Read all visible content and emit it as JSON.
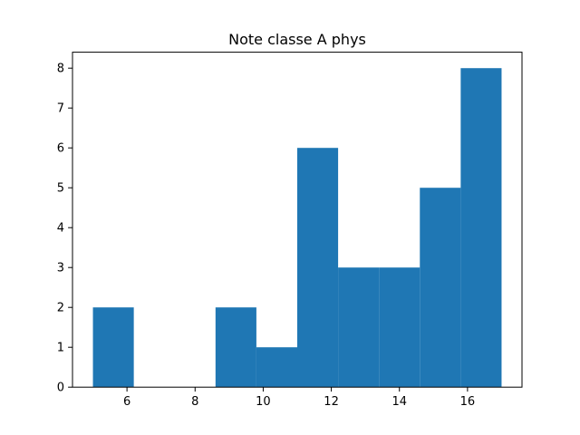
{
  "chart_data": {
    "type": "bar",
    "subtype": "histogram",
    "title": "Note classe A phys",
    "xlabel": "",
    "ylabel": "",
    "bins": [
      {
        "x0": 5.0,
        "x1": 6.2,
        "count": 2
      },
      {
        "x0": 6.2,
        "x1": 7.4,
        "count": 0
      },
      {
        "x0": 7.4,
        "x1": 8.6,
        "count": 0
      },
      {
        "x0": 8.6,
        "x1": 9.8,
        "count": 2
      },
      {
        "x0": 9.8,
        "x1": 11.0,
        "count": 1
      },
      {
        "x0": 11.0,
        "x1": 12.2,
        "count": 6
      },
      {
        "x0": 12.2,
        "x1": 13.4,
        "count": 3
      },
      {
        "x0": 13.4,
        "x1": 14.6,
        "count": 3
      },
      {
        "x0": 14.6,
        "x1": 15.8,
        "count": 5
      },
      {
        "x0": 15.8,
        "x1": 17.0,
        "count": 8
      }
    ],
    "xlim": [
      4.4,
      17.6
    ],
    "ylim": [
      0,
      8.4
    ],
    "xticks": [
      6,
      8,
      10,
      12,
      14,
      16
    ],
    "yticks": [
      0,
      1,
      2,
      3,
      4,
      5,
      6,
      7,
      8
    ],
    "bar_color": "#1f77b4",
    "grid": false,
    "legend": "none"
  }
}
